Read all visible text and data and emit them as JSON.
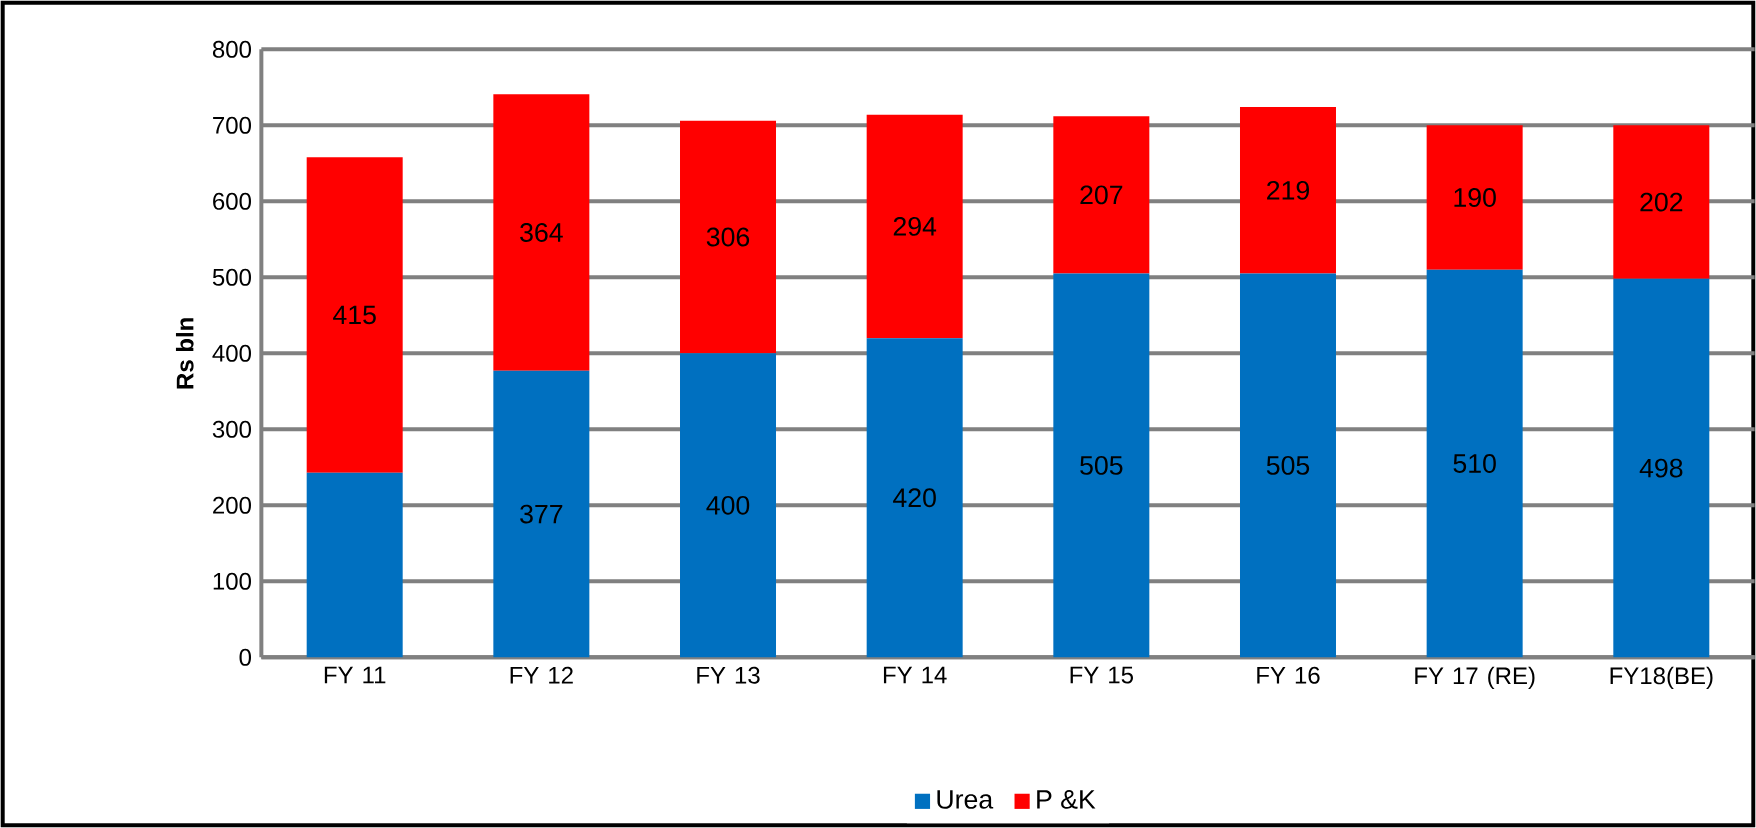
{
  "chart_data": {
    "type": "bar",
    "stacked": true,
    "ylabel": "Rs bln",
    "categories": [
      "FY 11",
      "FY 12",
      "FY 13",
      "FY 14",
      "FY 15",
      "FY 16",
      "FY 17 (RE)",
      "FY18(BE)"
    ],
    "series": [
      {
        "name": "Urea",
        "color": "#0070c0",
        "values": [
          243,
          377,
          400,
          420,
          505,
          505,
          510,
          498
        ],
        "value_labels": [
          null,
          "377",
          "400",
          "420",
          "505",
          "505",
          "510",
          "498"
        ]
      },
      {
        "name": "P &K",
        "color": "#ff0000",
        "values": [
          415,
          364,
          306,
          294,
          207,
          219,
          190,
          202
        ],
        "value_labels": [
          "415",
          "364",
          "306",
          "294",
          "207",
          "219",
          "190",
          "202"
        ]
      }
    ],
    "ylim": [
      0,
      800
    ],
    "yticks": [
      0,
      100,
      200,
      300,
      400,
      500,
      600,
      700,
      800
    ],
    "grid": "y",
    "legend": "bottom"
  }
}
